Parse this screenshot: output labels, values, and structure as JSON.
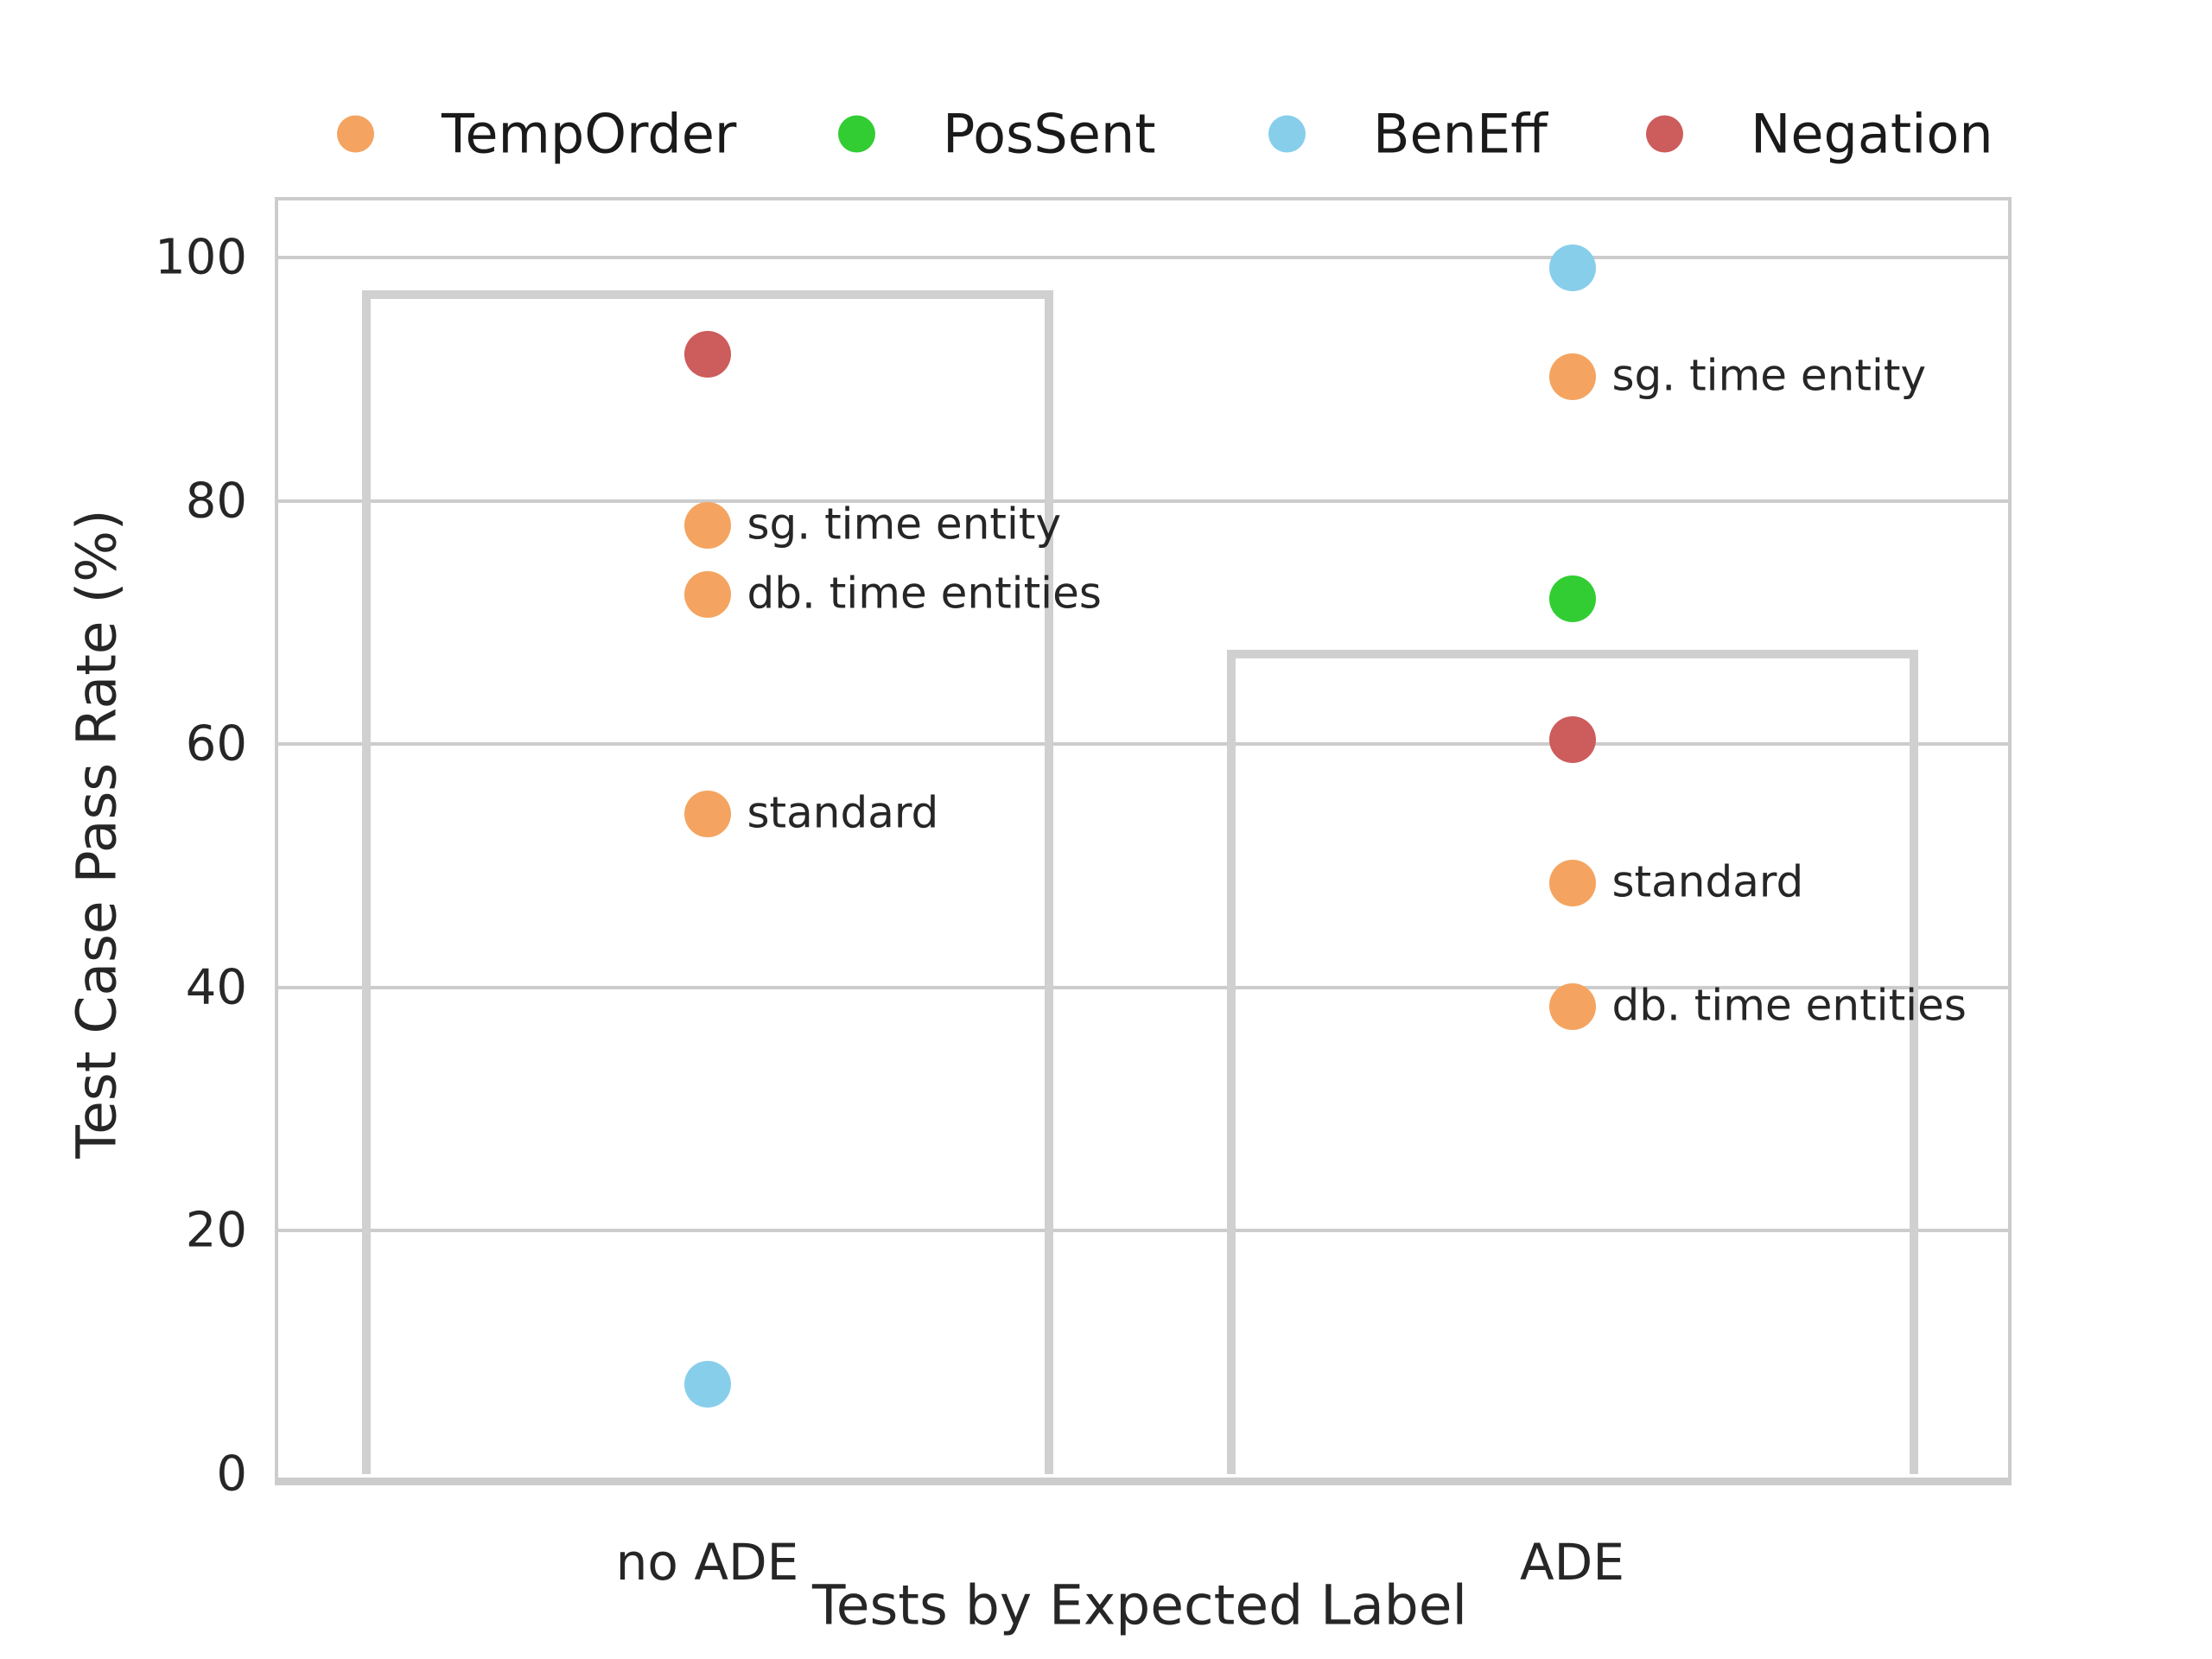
{
  "legend": {
    "items": [
      {
        "label": "TempOrder",
        "color": "#f4a460"
      },
      {
        "label": "PosSent",
        "color": "#32cd32"
      },
      {
        "label": "BenEff",
        "color": "#87ceeb"
      },
      {
        "label": "Negation",
        "color": "#cd5c5c"
      }
    ]
  },
  "axes": {
    "ylabel": "Test Case Pass Rate (%)",
    "xlabel": "Tests by Expected Label",
    "ytick_labels": [
      "0",
      "20",
      "40",
      "60",
      "80",
      "100"
    ],
    "xtick_labels": [
      "no ADE",
      "ADE"
    ]
  },
  "colors": {
    "grid": "#cccccc",
    "bar_edge": "#d0d0d0",
    "text": "#262626"
  },
  "chart_data": {
    "type": "scatter",
    "title": "",
    "xlabel": "Tests by Expected Label",
    "ylabel": "Test Case Pass Rate (%)",
    "categories": [
      "no ADE",
      "ADE"
    ],
    "yticks": [
      0,
      20,
      40,
      60,
      80,
      100
    ],
    "ylim": [
      0,
      105
    ],
    "grid": true,
    "legend_position": "top",
    "series_colors": {
      "TempOrder": "#f4a460",
      "PosSent": "#32cd32",
      "BenEff": "#87ceeb",
      "Negation": "#cd5c5c"
    },
    "bars": [
      {
        "category": "no ADE",
        "value": 97.3
      },
      {
        "category": "ADE",
        "value": 67.8
      }
    ],
    "points": [
      {
        "category": "no ADE",
        "series": "Negation",
        "value": 92.1,
        "label": ""
      },
      {
        "category": "no ADE",
        "series": "TempOrder",
        "value": 78.0,
        "label": "sg. time entity"
      },
      {
        "category": "no ADE",
        "series": "TempOrder",
        "value": 72.3,
        "label": "db. time entities"
      },
      {
        "category": "no ADE",
        "series": "TempOrder",
        "value": 54.3,
        "label": "standard"
      },
      {
        "category": "no ADE",
        "series": "BenEff",
        "value": 7.4,
        "label": ""
      },
      {
        "category": "ADE",
        "series": "BenEff",
        "value": 99.2,
        "label": ""
      },
      {
        "category": "ADE",
        "series": "TempOrder",
        "value": 90.2,
        "label": "sg. time entity"
      },
      {
        "category": "ADE",
        "series": "PosSent",
        "value": 72.0,
        "label": ""
      },
      {
        "category": "ADE",
        "series": "Negation",
        "value": 60.4,
        "label": ""
      },
      {
        "category": "ADE",
        "series": "TempOrder",
        "value": 48.6,
        "label": "standard"
      },
      {
        "category": "ADE",
        "series": "TempOrder",
        "value": 38.4,
        "label": "db. time entities"
      }
    ]
  }
}
